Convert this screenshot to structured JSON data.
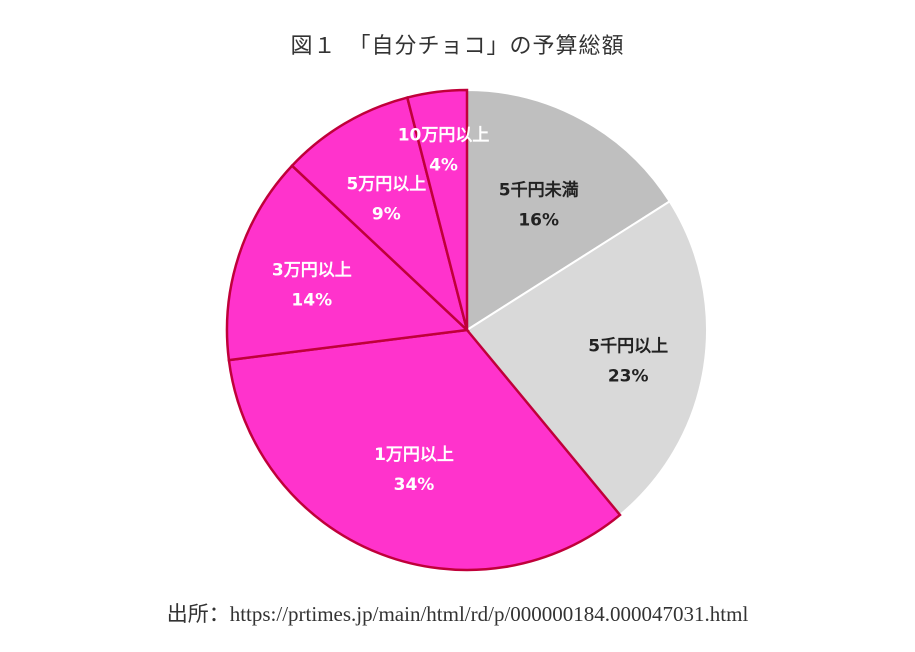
{
  "chart_data": {
    "type": "pie",
    "title": "図１　「自分チョコ」の予算総額",
    "slices": [
      {
        "label": "5千円未満",
        "value": 16,
        "value_label": "16%",
        "color": "#bfbfbf",
        "text_color": "#222222"
      },
      {
        "label": "5千円以上",
        "value": 23,
        "value_label": "23%",
        "color": "#d9d9d9",
        "text_color": "#222222"
      },
      {
        "label": "1万円以上",
        "value": 34,
        "value_label": "34%",
        "color": "#ff33cc",
        "text_color": "#ffffff"
      },
      {
        "label": "3万円以上",
        "value": 14,
        "value_label": "14%",
        "color": "#ff33cc",
        "text_color": "#ffffff"
      },
      {
        "label": "5万円以上",
        "value": 9,
        "value_label": "9%",
        "color": "#ff33cc",
        "text_color": "#ffffff"
      },
      {
        "label": "10万円以上",
        "value": 4,
        "value_label": "4%",
        "color": "#ff33cc",
        "text_color": "#ffffff"
      }
    ],
    "start_angle_deg": 0,
    "direction": "clockwise",
    "border_color": "#c0003a"
  },
  "source": "出所：https://prtimes.jp/main/html/rd/p/000000184.000047031.html"
}
